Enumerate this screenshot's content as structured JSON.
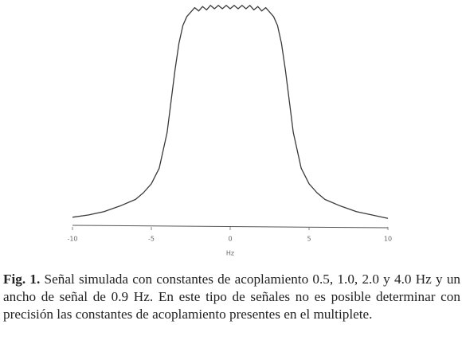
{
  "chart_data": {
    "type": "line",
    "xlabel": "Hz",
    "x": [
      -10,
      -9,
      -8,
      -7,
      -6,
      -5.5,
      -5,
      -4.5,
      -4,
      -3.75,
      -3.5,
      -3.25,
      -3,
      -2.75,
      -2.5,
      -2.25,
      -2,
      -1.75,
      -1.5,
      -1.25,
      -1,
      -0.75,
      -0.5,
      -0.25,
      0,
      0.25,
      0.5,
      0.75,
      1,
      1.25,
      1.5,
      1.75,
      2,
      2.25,
      2.5,
      2.75,
      3,
      3.25,
      3.5,
      3.75,
      4,
      4.5,
      5,
      5.5,
      6,
      7,
      8,
      9,
      10
    ],
    "values": [
      0.04,
      0.05,
      0.065,
      0.09,
      0.12,
      0.15,
      0.19,
      0.26,
      0.42,
      0.56,
      0.7,
      0.82,
      0.9,
      0.94,
      0.96,
      0.98,
      0.965,
      0.985,
      0.97,
      0.99,
      0.975,
      0.99,
      0.975,
      0.99,
      0.975,
      0.99,
      0.975,
      0.99,
      0.975,
      0.99,
      0.97,
      0.985,
      0.965,
      0.98,
      0.96,
      0.94,
      0.9,
      0.82,
      0.7,
      0.56,
      0.42,
      0.26,
      0.19,
      0.15,
      0.12,
      0.09,
      0.065,
      0.05,
      0.035
    ],
    "color": "#3a3a3a",
    "xlim": [
      -10,
      10
    ],
    "xticks": [
      -10,
      -5,
      0,
      5,
      10
    ],
    "ylim": [
      0,
      1
    ]
  },
  "caption": {
    "label": "Fig. 1.",
    "text": "Señal simulada con constantes de acoplamiento 0.5, 1.0, 2.0 y 4.0 Hz y un ancho de señal de 0.9 Hz. En este tipo de señales no es posible determinar con precisión las constantes de acoplamiento presentes en el multiplete."
  }
}
